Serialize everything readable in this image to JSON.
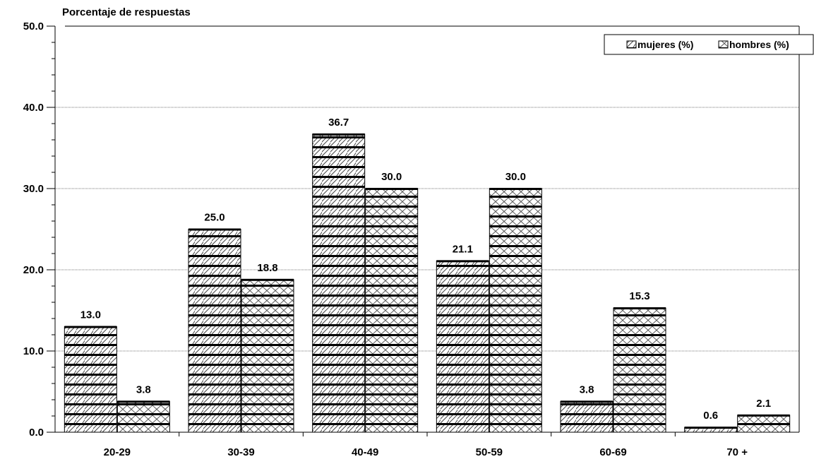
{
  "chart_data": {
    "type": "bar",
    "title": "",
    "ylabel": "Porcentaje de respuestas",
    "xlabel": "",
    "categories": [
      "20-29",
      "30-39",
      "40-49",
      "50-59",
      "60-69",
      "70 +"
    ],
    "series": [
      {
        "name": "mujeres (%)",
        "values": [
          13.0,
          25.0,
          36.7,
          21.1,
          3.8,
          0.6
        ],
        "pattern": "horizontal-stripes-diagonal-hatch"
      },
      {
        "name": "hombres (%)",
        "values": [
          3.8,
          18.8,
          30.0,
          30.0,
          15.3,
          2.1
        ],
        "pattern": "horizontal-stripes-crosshatch"
      }
    ],
    "ylim": [
      0,
      50
    ],
    "yticks": [
      "0.0",
      "10.0",
      "20.0",
      "30.0",
      "40.0",
      "50.0"
    ],
    "data_labels": true,
    "grid": "horizontal-dotted",
    "legend": "top-right",
    "colors": {
      "bar_outline": "#000000",
      "pattern": "#000000",
      "background": "#ffffff"
    }
  }
}
